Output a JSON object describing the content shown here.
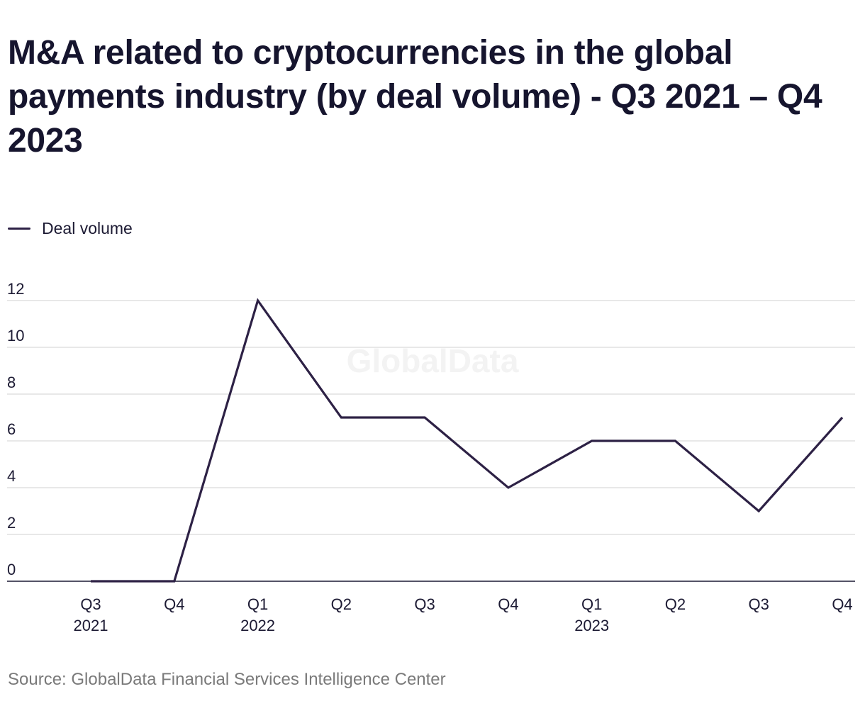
{
  "title": "M&A related to cryptocurrencies in the global payments industry (by deal volume) - Q3 2021 – Q4 2023",
  "legend": {
    "label": "Deal volume"
  },
  "source": "Source: GlobalData Financial Services Intelligence Center",
  "watermark": "GlobalData",
  "colors": {
    "line": "#2d2145",
    "grid": "#d9d9d9",
    "axis": "#1c1a33",
    "text": "#1c1a33",
    "watermark": "#f3f3f3"
  },
  "chart_data": {
    "type": "line",
    "categories": [
      {
        "quarter": "Q3",
        "year": "2021"
      },
      {
        "quarter": "Q4",
        "year": ""
      },
      {
        "quarter": "Q1",
        "year": "2022"
      },
      {
        "quarter": "Q2",
        "year": ""
      },
      {
        "quarter": "Q3",
        "year": ""
      },
      {
        "quarter": "Q4",
        "year": ""
      },
      {
        "quarter": "Q1",
        "year": "2023"
      },
      {
        "quarter": "Q2",
        "year": ""
      },
      {
        "quarter": "Q3",
        "year": ""
      },
      {
        "quarter": "Q4",
        "year": ""
      }
    ],
    "series": [
      {
        "name": "Deal volume",
        "values": [
          0,
          0,
          12,
          7,
          7,
          4,
          6,
          6,
          3,
          7
        ]
      }
    ],
    "yticks": [
      0,
      2,
      4,
      6,
      8,
      10,
      12
    ],
    "ylim": [
      0,
      12
    ],
    "grid": true,
    "legend_position": "top-left"
  }
}
